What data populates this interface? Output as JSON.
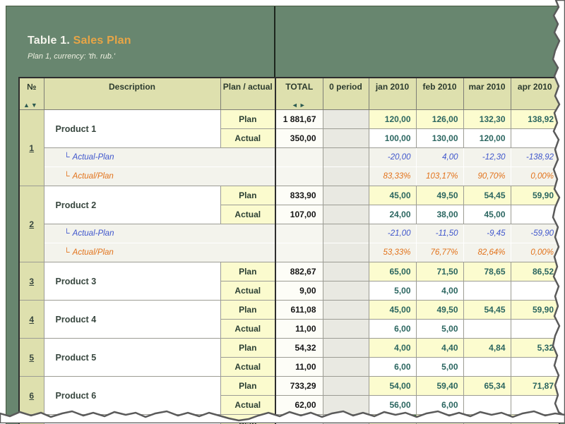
{
  "title": {
    "prefix": "Table 1.",
    "name": "Sales Plan",
    "subtitle": "Plan 1, currency: 'th. rub.'"
  },
  "table": {
    "headers": {
      "num": "№",
      "description": "Description",
      "plan_actual": "Plan / actual",
      "total": "TOTAL",
      "period0": "0 period",
      "months": [
        "jan 2010",
        "feb 2010",
        "mar 2010",
        "apr 2010"
      ]
    },
    "header_icons": {
      "sort_asc": "▲",
      "sort_desc": "▼",
      "nav": "◄►"
    },
    "row_labels": {
      "plan": "Plan",
      "actual": "Actual",
      "diff": "Actual-Plan",
      "ratio": "Actual/Plan",
      "sub_prefix": "└"
    },
    "products": [
      {
        "num": "1",
        "name": "Product 1",
        "plan_total": "1 881,67",
        "actual_total": "350,00",
        "plan": [
          "120,00",
          "126,00",
          "132,30",
          "138,92"
        ],
        "actual": [
          "100,00",
          "130,00",
          "120,00",
          ""
        ],
        "diff": [
          "-20,00",
          "4,00",
          "-12,30",
          "-138,92"
        ],
        "ratio": [
          "83,33%",
          "103,17%",
          "90,70%",
          "0,00%"
        ]
      },
      {
        "num": "2",
        "name": "Product 2",
        "plan_total": "833,90",
        "actual_total": "107,00",
        "plan": [
          "45,00",
          "49,50",
          "54,45",
          "59,90"
        ],
        "actual": [
          "24,00",
          "38,00",
          "45,00",
          ""
        ],
        "diff": [
          "-21,00",
          "-11,50",
          "-9,45",
          "-59,90"
        ],
        "ratio": [
          "53,33%",
          "76,77%",
          "82,64%",
          "0,00%"
        ]
      },
      {
        "num": "3",
        "name": "Product 3",
        "plan_total": "882,67",
        "actual_total": "9,00",
        "plan": [
          "65,00",
          "71,50",
          "78,65",
          "86,52"
        ],
        "actual": [
          "5,00",
          "4,00",
          "",
          ""
        ]
      },
      {
        "num": "4",
        "name": "Product 4",
        "plan_total": "611,08",
        "actual_total": "11,00",
        "plan": [
          "45,00",
          "49,50",
          "54,45",
          "59,90"
        ],
        "actual": [
          "6,00",
          "5,00",
          "",
          ""
        ]
      },
      {
        "num": "5",
        "name": "Product 5",
        "plan_total": "54,32",
        "actual_total": "11,00",
        "plan": [
          "4,00",
          "4,40",
          "4,84",
          "5,32"
        ],
        "actual": [
          "6,00",
          "5,00",
          "",
          ""
        ]
      },
      {
        "num": "6",
        "name": "Product 6",
        "plan_total": "733,29",
        "actual_total": "62,00",
        "plan": [
          "54,00",
          "59,40",
          "65,34",
          "71,87"
        ],
        "actual": [
          "56,00",
          "6,00",
          "",
          ""
        ]
      }
    ],
    "partial_row": {
      "label": "Plan"
    }
  },
  "selection": {
    "product_index": 4,
    "row": "actual",
    "month_index": 3
  },
  "colors": {
    "panel_green": "#68866f",
    "title_accent": "#e8a546",
    "header_olive": "#dee0ae",
    "plan_yellow": "#fcfccf",
    "value_teal": "#2b6660",
    "diff_blue": "#3f56cc",
    "ratio_orange": "#e2731c",
    "marker_green": "#357d35"
  }
}
